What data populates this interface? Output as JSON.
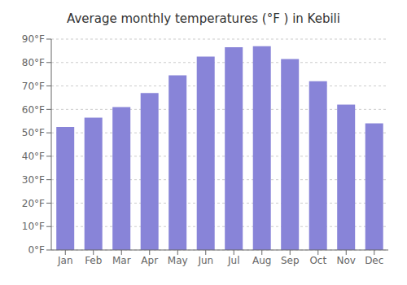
{
  "chart_data": {
    "type": "bar",
    "title": "Average monthly temperatures (°F ) in Kebili",
    "categories": [
      "Jan",
      "Feb",
      "Mar",
      "Apr",
      "May",
      "Jun",
      "Jul",
      "Aug",
      "Sep",
      "Oct",
      "Nov",
      "Dec"
    ],
    "values": [
      52.5,
      56.5,
      61.0,
      67.0,
      74.5,
      82.5,
      86.5,
      87.0,
      81.5,
      72.0,
      62.0,
      54.0
    ],
    "ylim": [
      0,
      90
    ],
    "yticks": [
      {
        "value": 0,
        "label": "0°F"
      },
      {
        "value": 10,
        "label": "10°F"
      },
      {
        "value": 20,
        "label": "20°F"
      },
      {
        "value": 30,
        "label": "30°F"
      },
      {
        "value": 40,
        "label": "40°F"
      },
      {
        "value": 50,
        "label": "50°F"
      },
      {
        "value": 60,
        "label": "60°F"
      },
      {
        "value": 70,
        "label": "70°F"
      },
      {
        "value": 80,
        "label": "80°F"
      },
      {
        "value": 90,
        "label": "90°F"
      }
    ],
    "grid": true
  }
}
